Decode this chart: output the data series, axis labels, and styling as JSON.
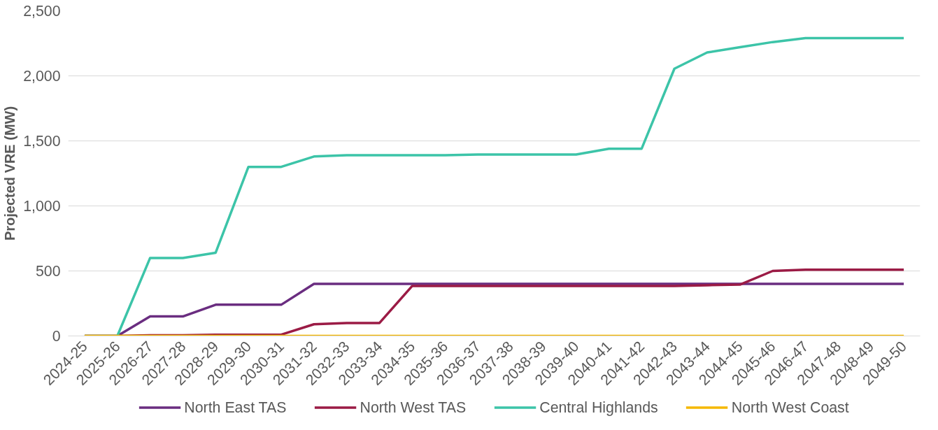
{
  "chart_data": {
    "type": "line",
    "ylabel": "Projected VRE (MW)",
    "categories": [
      "2024-25",
      "2025-26",
      "2026-27",
      "2027-28",
      "2028-29",
      "2029-30",
      "2030-31",
      "2031-32",
      "2032-33",
      "2033-34",
      "2034-35",
      "2035-36",
      "2036-37",
      "2037-38",
      "2038-39",
      "2039-40",
      "2040-41",
      "2041-42",
      "2042-43",
      "2043-44",
      "2044-45",
      "2045-46",
      "2046-47",
      "2047-48",
      "2048-49",
      "2049-50"
    ],
    "series": [
      {
        "name": "North East TAS",
        "color": "#6a2d80",
        "values": [
          0,
          0,
          150,
          150,
          240,
          240,
          240,
          400,
          400,
          400,
          400,
          400,
          400,
          400,
          400,
          400,
          400,
          400,
          400,
          400,
          400,
          400,
          400,
          400,
          400,
          400
        ]
      },
      {
        "name": "North West TAS",
        "color": "#9b1b45",
        "values": [
          0,
          0,
          5,
          5,
          10,
          10,
          10,
          90,
          100,
          100,
          385,
          385,
          385,
          385,
          385,
          385,
          385,
          385,
          385,
          390,
          395,
          500,
          510,
          510,
          510,
          510
        ]
      },
      {
        "name": "Central Highlands",
        "color": "#3cc4a8",
        "values": [
          0,
          0,
          600,
          600,
          640,
          1300,
          1300,
          1380,
          1390,
          1390,
          1390,
          1390,
          1395,
          1395,
          1395,
          1395,
          1440,
          1440,
          2055,
          2180,
          2220,
          2260,
          2290,
          2290,
          2290,
          2290
        ]
      },
      {
        "name": "North West Coast",
        "color": "#f5b800",
        "values": [
          0,
          0,
          0,
          0,
          0,
          0,
          0,
          0,
          0,
          0,
          0,
          0,
          0,
          0,
          0,
          0,
          0,
          0,
          0,
          0,
          0,
          0,
          0,
          0,
          0,
          0
        ]
      }
    ],
    "ylim": [
      0,
      2500
    ],
    "yticks": [
      {
        "value": 0,
        "label": "0"
      },
      {
        "value": 500,
        "label": "500"
      },
      {
        "value": 1000,
        "label": "1,000"
      },
      {
        "value": 1500,
        "label": "1,500"
      },
      {
        "value": 2000,
        "label": "2,000"
      },
      {
        "value": 2500,
        "label": "2,500"
      }
    ],
    "grid": "y",
    "legend": "bottom",
    "marker": "none",
    "line_style": "solid"
  }
}
